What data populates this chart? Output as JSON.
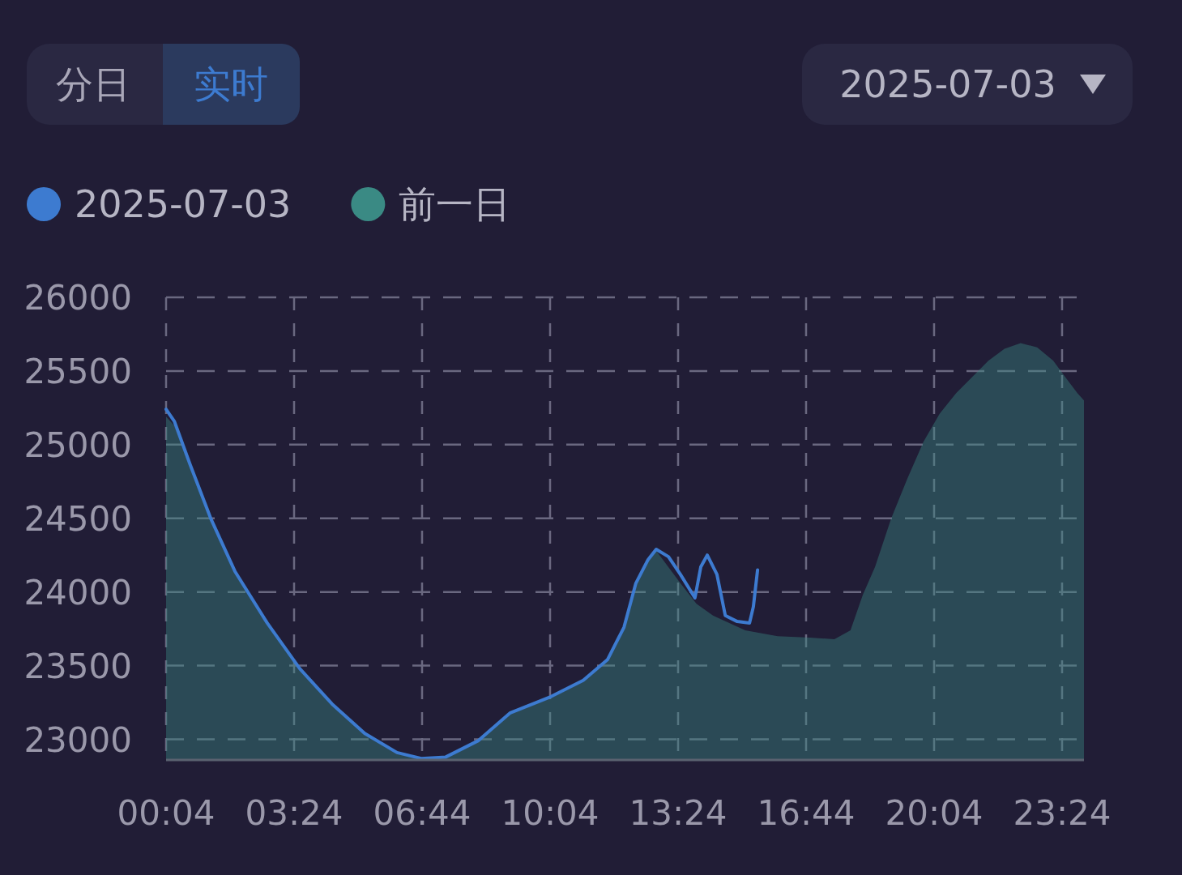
{
  "chart_data": {
    "type": "line",
    "annotations": [
      "分日",
      "实时",
      "2025-07-03"
    ],
    "xlim": [
      0.0667,
      23.97
    ],
    "ylim": [
      22860,
      26000
    ],
    "xticks": [
      {
        "value": 0.0667,
        "label": "00:04"
      },
      {
        "value": 3.4,
        "label": "03:24"
      },
      {
        "value": 6.7333,
        "label": "06:44"
      },
      {
        "value": 10.0667,
        "label": "10:04"
      },
      {
        "value": 13.4,
        "label": "13:24"
      },
      {
        "value": 16.7333,
        "label": "16:44"
      },
      {
        "value": 20.0667,
        "label": "20:04"
      },
      {
        "value": 23.4,
        "label": "23:24"
      }
    ],
    "yticks": [
      23000,
      23500,
      24000,
      24500,
      25000,
      25500,
      26000
    ],
    "grid": true,
    "legend": "top left",
    "marker": "none",
    "line_style": "solid",
    "series": [
      {
        "name": "2025-07-03",
        "color": "#3d7bd0",
        "x": [
          0.067,
          0.28,
          0.7,
          1.23,
          1.86,
          2.7,
          3.55,
          4.39,
          5.24,
          6.08,
          6.71,
          7.35,
          8.19,
          9.03,
          10.09,
          10.93,
          11.56,
          11.99,
          12.3,
          12.62,
          12.83,
          13.15,
          13.46,
          13.84,
          13.99,
          14.16,
          14.41,
          14.63,
          14.94,
          15.26,
          15.36,
          15.47
        ],
        "values": [
          25240,
          25160,
          24860,
          24500,
          24140,
          23790,
          23480,
          23240,
          23040,
          22910,
          22870,
          22880,
          22990,
          23180,
          23290,
          23400,
          23540,
          23760,
          24060,
          24220,
          24290,
          24240,
          24120,
          23960,
          24170,
          24250,
          24120,
          23840,
          23800,
          23790,
          23900,
          24150
        ]
      },
      {
        "name": "前一日",
        "type": "area",
        "color": "#3a8a84",
        "x": [
          0.067,
          0.28,
          0.7,
          1.23,
          1.86,
          2.7,
          3.55,
          4.39,
          5.24,
          6.08,
          6.71,
          7.35,
          8.19,
          9.03,
          10.09,
          10.93,
          11.56,
          11.99,
          12.3,
          12.62,
          12.83,
          13.46,
          13.88,
          14.31,
          15.15,
          15.99,
          16.84,
          17.47,
          17.89,
          18.21,
          18.53,
          18.95,
          19.37,
          19.79,
          20.21,
          20.64,
          21.06,
          21.48,
          21.9,
          22.32,
          22.75,
          23.17,
          23.48,
          23.8,
          23.97
        ],
        "values": [
          25190,
          25130,
          24850,
          24490,
          24130,
          23780,
          23470,
          23230,
          23030,
          22900,
          22870,
          22880,
          22980,
          23170,
          23280,
          23390,
          23530,
          23740,
          24040,
          24210,
          24280,
          24060,
          23920,
          23840,
          23740,
          23700,
          23690,
          23680,
          23740,
          23980,
          24170,
          24500,
          24770,
          25020,
          25210,
          25350,
          25460,
          25570,
          25650,
          25690,
          25660,
          25570,
          25460,
          25350,
          25300
        ]
      }
    ]
  }
}
